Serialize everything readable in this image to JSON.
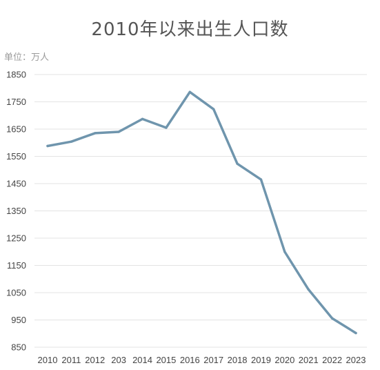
{
  "title": "2010年以来出生人口数",
  "unit_label": "单位：万人",
  "chart_data": {
    "type": "line",
    "title": "2010年以来出生人口数",
    "unit": "万人",
    "categories": [
      "2010",
      "2011",
      "2012",
      "203",
      "2014",
      "2015",
      "2016",
      "2017",
      "2018",
      "2019",
      "2020",
      "2021",
      "2022",
      "2023"
    ],
    "series": [
      {
        "values": [
          1588,
          1604,
          1635,
          1640,
          1687,
          1655,
          1786,
          1723,
          1523,
          1465,
          1200,
          1062,
          956,
          902
        ],
        "color": "#6f95ad"
      }
    ],
    "ylim": [
      850,
      1850
    ],
    "yticks": [
      850,
      950,
      1050,
      1150,
      1250,
      1350,
      1450,
      1550,
      1650,
      1750,
      1850
    ],
    "grid": true,
    "legend": "none"
  }
}
